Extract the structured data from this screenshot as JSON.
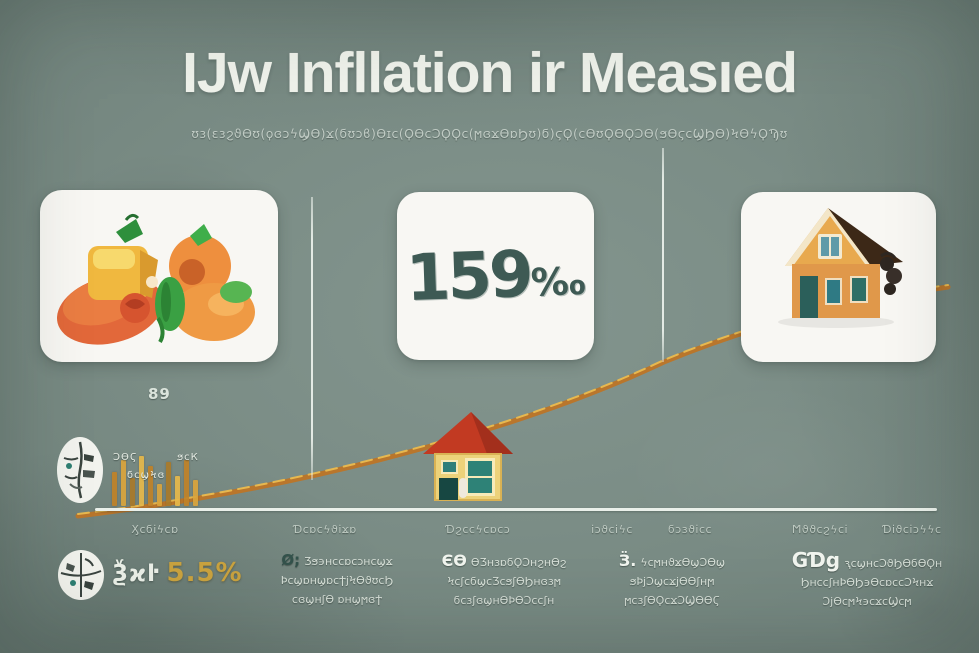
{
  "title": "IJw Infllation ir Measıed",
  "subtitle": "ʊɜ(ɛɜϩϑϴʊ(ϙɞɔϟϢϴ)ϫ(ϭʊɔϐ)ϴɪϲ(ϘϴϲϽϘϘϲ(ϻɞϫϴɒϦʊ)ϭ)ϛϘ(ϲϴʊϘϴϘϽϴ(ϧϴϛϲϢϦϴ)ϞϴϟϘϠʊ",
  "cards": {
    "food": {
      "description": "fruit-and-food-illustration"
    },
    "rate": {
      "number": "159",
      "permille": "‰"
    },
    "house": {
      "description": "orange-house-illustration"
    }
  },
  "chart": {
    "marker_value": "89",
    "bar_notes": [
      "ϽϴϚ",
      "ϭϲϣϞɞ",
      "ϧϲК"
    ],
    "axis_labels": [
      "Ӽϲϭіϟϲɒ",
      "Ɗϲɒϲϟϑіϫɒ",
      "Ɗϩϲϲϟϲɒϲɔ",
      "іɔϑϲіϟϲ",
      "ϭɔɜϑіϲϲ",
      "Ϻϑϑϲϩϟϲі",
      "Ɗіϑϲіɔϟϟϲ"
    ]
  },
  "mini_bar_chart": {
    "type": "bar",
    "bars": [
      34,
      46,
      28,
      50,
      40,
      22,
      44,
      30,
      46,
      26
    ],
    "colors": [
      "#c08228",
      "#daa53c",
      "#a97a2a",
      "#e6b84a"
    ]
  },
  "trend_line": {
    "description": "rising-inflation-trend",
    "color_main": "#b9762c",
    "color_highlight": "#e7b84f"
  },
  "footer": {
    "stat": {
      "prefix": "Ѯϰŀ",
      "value": "5.5%"
    },
    "columns": [
      {
        "icon": "Ø;",
        "line1": "Ӡϧ϶ʜϲϲɒϲɔʜϲϣϫ",
        "line2": "ϷϲϣɒʜϣɒϲϮϳϞϴϑʊϲϦ",
        "line3": "ϲɞϣʜʃϴ ɒʜϣϻɞϮ"
      },
      {
        "icon": "ЄӨ",
        "line1": "ӨӠʜɜɒϭϘϽʜϩʜϴϩ",
        "line2": "ϞϲʃϲϭϣϲӠϲϧʃϴϦʜɞɜϻ",
        "line3": "ϭϲɜʃɞϣʜϴϷϴϽϲϲʃʜ"
      },
      {
        "icon": "Ӟ.",
        "line1": "ϟϲϻʜϑϫϴϣϽϴϣ",
        "line2": "ϧϷϳϽϣϲϫϳϴϴʃʜϻ",
        "line3": "ϻϲɜʃϴϘϲϫϽϢϴϴϚ"
      },
      {
        "icon": "GƊg",
        "line1": "ԇϲϣʜϲϽϑϦϴϭϴϘʜ",
        "line2": "ϦʜϲϲʃʜϷϴϦ϶ϴϲɒϲϲϽϞʜϫ",
        "line3": "ϽϳϴϲϻϞ϶ϲϫϲϢϲϻ"
      }
    ]
  },
  "colors": {
    "background": "#7b8d86",
    "card": "#f8f7f3",
    "rate_text": "#3e5a54",
    "gold": "#c9a23f",
    "trend_orange": "#b9762c"
  }
}
